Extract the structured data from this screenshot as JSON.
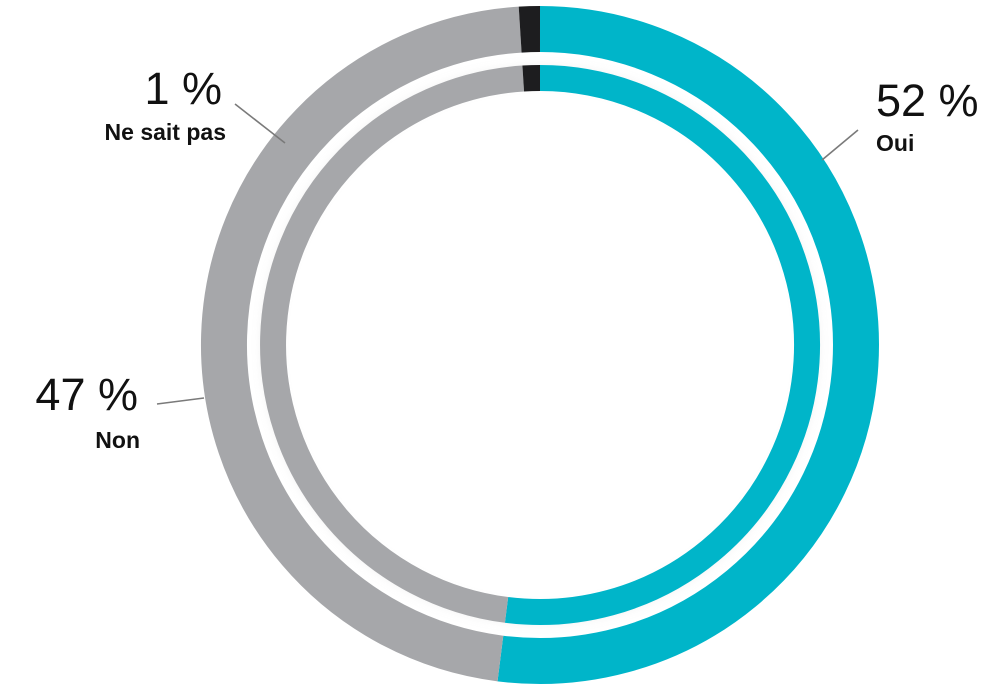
{
  "chart_data": {
    "type": "pie",
    "style": "double-donut",
    "start": "top, clockwise",
    "categories": [
      "Oui",
      "Non",
      "Ne sait pas"
    ],
    "values": [
      52,
      47,
      1
    ],
    "value_labels": [
      "52 %",
      "47 %",
      "1 %"
    ],
    "colors": {
      "Oui": "#00b5c9",
      "Non": "#a6a7aa",
      "Ne sait pas": "#1d1d1f"
    },
    "rings": [
      "outer",
      "inner"
    ],
    "title": "",
    "legend": "none"
  }
}
